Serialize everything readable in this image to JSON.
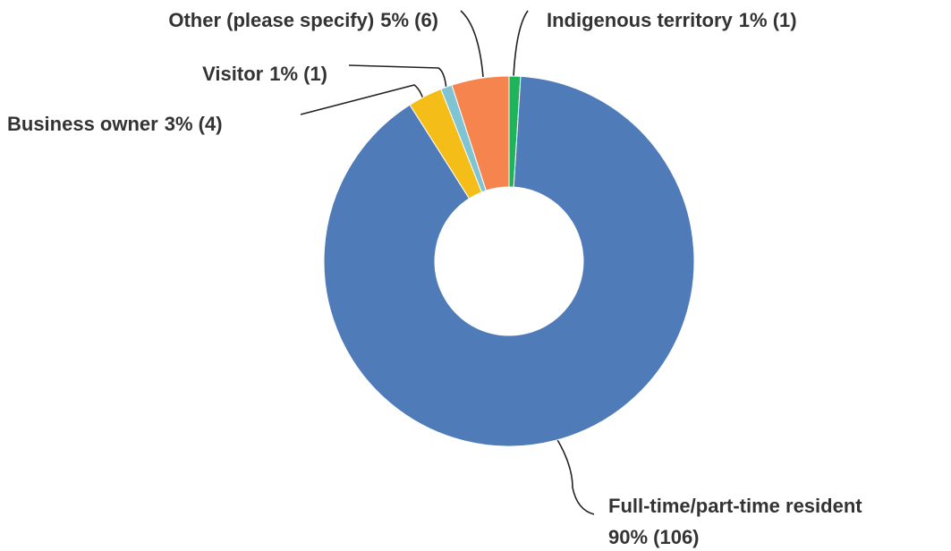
{
  "chart_data": {
    "type": "donut",
    "categories": [
      "Indigenous territory",
      "Full-time/part-time resident",
      "Business owner",
      "Visitor",
      "Other (please specify)"
    ],
    "values": [
      1,
      90,
      3,
      1,
      5
    ],
    "value_labels": [
      "1% (1)",
      "90% (106)",
      "3% (4)",
      "1% (1)",
      "5% (6)"
    ],
    "colors": [
      "#1fb35a",
      "#4f7bb9",
      "#f5bd18",
      "#7fc4d4",
      "#f5844f"
    ]
  }
}
